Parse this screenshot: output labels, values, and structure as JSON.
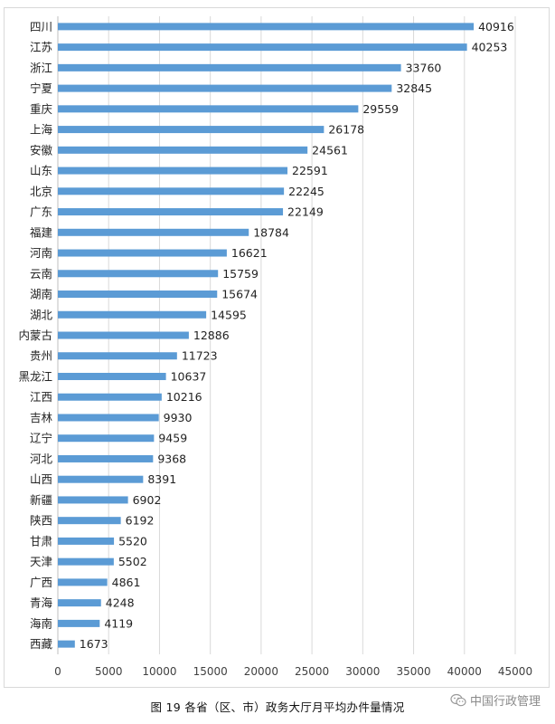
{
  "chart_data": {
    "type": "bar",
    "orientation": "horizontal",
    "categories": [
      "四川",
      "江苏",
      "浙江",
      "宁夏",
      "重庆",
      "上海",
      "安徽",
      "山东",
      "北京",
      "广东",
      "福建",
      "河南",
      "云南",
      "湖南",
      "湖北",
      "内蒙古",
      "贵州",
      "黑龙江",
      "江西",
      "吉林",
      "辽宁",
      "河北",
      "山西",
      "新疆",
      "陕西",
      "甘肃",
      "天津",
      "广西",
      "青海",
      "海南",
      "西藏"
    ],
    "values": [
      40916,
      40253,
      33760,
      32845,
      29559,
      26178,
      24561,
      22591,
      22245,
      22149,
      18784,
      16621,
      15759,
      15674,
      14595,
      12886,
      11723,
      10637,
      10216,
      9930,
      9459,
      9368,
      8391,
      6902,
      6192,
      5520,
      5502,
      4861,
      4248,
      4119,
      1673
    ],
    "x_ticks": [
      "0",
      "5000",
      "10000",
      "15000",
      "20000",
      "25000",
      "30000",
      "35000",
      "40000",
      "45000"
    ],
    "xlim": [
      0,
      45000
    ],
    "grid": true,
    "bar_color": "#5b9bd5",
    "gridline_color": "#d9d9d9",
    "data_labels": true
  },
  "caption": "图 19  各省（区、市）政务大厅月平均办件量情况",
  "watermark": {
    "icon": "wechat-icon",
    "text": "中国行政管理"
  }
}
